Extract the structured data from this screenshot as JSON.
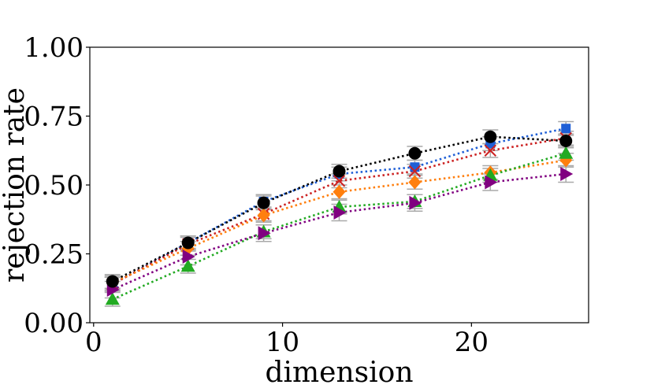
{
  "chart_data": {
    "type": "line",
    "title": "",
    "xlabel": "dimension",
    "ylabel": "rejection rate",
    "xlim": [
      -0.2,
      26.2
    ],
    "ylim": [
      0.0,
      1.0
    ],
    "xticks": [
      0,
      10,
      20
    ],
    "xtick_labels": [
      "0",
      "10",
      "20"
    ],
    "yticks": [
      0.0,
      0.25,
      0.5,
      0.75,
      1.0
    ],
    "ytick_labels": [
      "0.00",
      "0.25",
      "0.50",
      "0.75",
      "1.00"
    ],
    "grid": false,
    "x": [
      1,
      5,
      9,
      13,
      17,
      21,
      25
    ],
    "series": [
      {
        "name": "blue-square",
        "color": "#1f5fd6",
        "marker": "square",
        "values": [
          0.14,
          0.29,
          0.44,
          0.54,
          0.565,
          0.65,
          0.705
        ],
        "err": 0.025
      },
      {
        "name": "red-x",
        "color": "#cc2222",
        "marker": "x",
        "values": [
          0.14,
          0.285,
          0.395,
          0.515,
          0.55,
          0.625,
          0.67
        ],
        "err": 0.025
      },
      {
        "name": "orange-diamond",
        "color": "#ff7f0e",
        "marker": "diamond",
        "values": [
          0.145,
          0.27,
          0.39,
          0.475,
          0.51,
          0.545,
          0.59
        ],
        "err": 0.025
      },
      {
        "name": "green-triangle",
        "color": "#22aa22",
        "marker": "triangle-up",
        "values": [
          0.085,
          0.205,
          0.33,
          0.42,
          0.44,
          0.535,
          0.615
        ],
        "err": 0.025
      },
      {
        "name": "purple-triangle",
        "color": "#800080",
        "marker": "triangle-right",
        "values": [
          0.12,
          0.24,
          0.325,
          0.4,
          0.435,
          0.51,
          0.54
        ],
        "err": 0.03
      },
      {
        "name": "black-circle",
        "color": "#000000",
        "marker": "circle",
        "values": [
          0.15,
          0.29,
          0.435,
          0.55,
          0.615,
          0.675,
          0.66
        ],
        "err": 0.025
      }
    ],
    "errorbar_color": "#a9a9a9"
  }
}
